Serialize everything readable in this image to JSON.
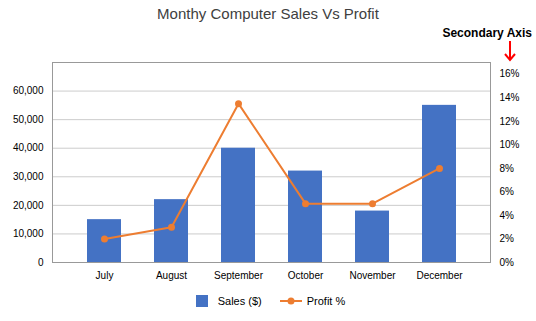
{
  "chart_data": {
    "type": "bar",
    "title": "Monthy Computer Sales Vs Profit",
    "categories": [
      "July",
      "August",
      "September",
      "October",
      "November",
      "December"
    ],
    "series": [
      {
        "name": "Sales ($)",
        "type": "bar",
        "color": "#4472C4",
        "values": [
          15000,
          22000,
          40000,
          32000,
          18000,
          55000
        ]
      },
      {
        "name": "Profit %",
        "type": "line",
        "axis": "y2",
        "color": "#ED7D31",
        "marker": "circle",
        "values": [
          2.0,
          3.0,
          13.5,
          5.0,
          5.0,
          8.0
        ]
      }
    ],
    "ylim": [
      0,
      70000
    ],
    "yticks": [
      0,
      {
        "value": 10000,
        "label": "10,000"
      },
      {
        "value": 20000,
        "label": "20,000"
      },
      {
        "value": 30000,
        "label": "30,000"
      },
      {
        "value": 40000,
        "label": "40,000"
      },
      {
        "value": 50000,
        "label": "50,000"
      },
      {
        "value": 60000,
        "label": "60,000"
      }
    ],
    "y2lim": [
      0,
      17.0
    ],
    "y2ticks": [
      {
        "value": 0,
        "label": "0%"
      },
      {
        "value": 2,
        "label": "2%"
      },
      {
        "value": 4,
        "label": "4%"
      },
      {
        "value": 6,
        "label": "6%"
      },
      {
        "value": 8,
        "label": "8%"
      },
      {
        "value": 10,
        "label": "10%"
      },
      {
        "value": 12,
        "label": "12%"
      },
      {
        "value": 14,
        "label": "14%"
      },
      {
        "value": 16,
        "label": "16%"
      }
    ],
    "grid": true,
    "legend": "bottom",
    "annotations": [
      {
        "text": "Secondary Axis",
        "color": "red"
      }
    ]
  }
}
